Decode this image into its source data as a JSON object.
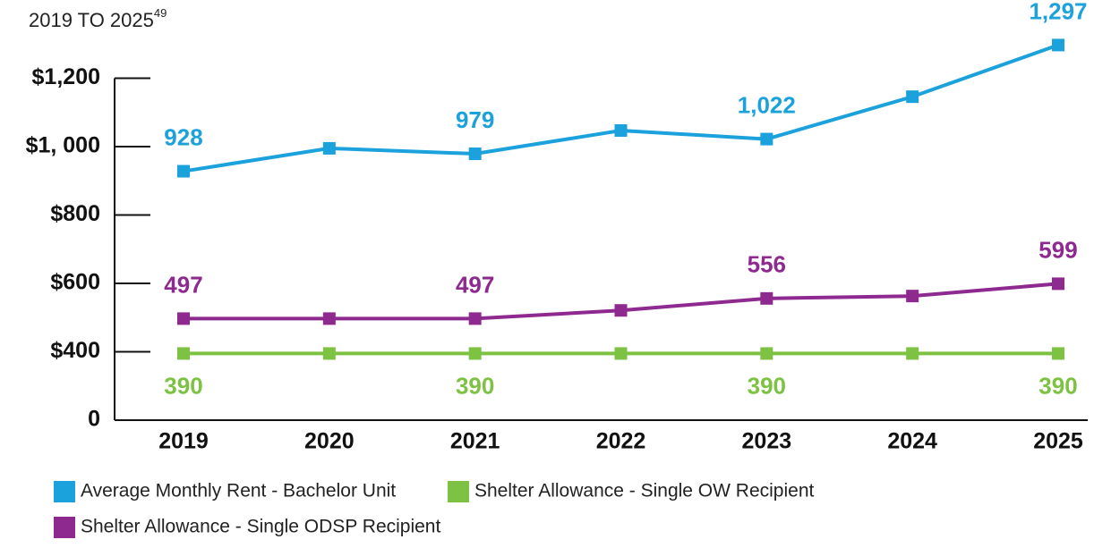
{
  "chart_data": {
    "type": "line",
    "title": "2019 TO 2025",
    "title_superscript": "49",
    "categories": [
      "2019",
      "2020",
      "2021",
      "2022",
      "2023",
      "2024",
      "2025"
    ],
    "series": [
      {
        "name": "Average Monthly Rent - Bachelor Unit",
        "color": "#1ba1dc",
        "values": [
          928,
          995,
          979,
          1047,
          1022,
          1146,
          1297
        ],
        "value_labels": [
          "928",
          null,
          "979",
          null,
          "1,022",
          null,
          "1,297"
        ]
      },
      {
        "name": "Shelter Allowance - Single OW Recipient",
        "color": "#7dc243",
        "values": [
          390,
          390,
          390,
          390,
          390,
          390,
          390
        ],
        "value_labels": [
          "390",
          null,
          "390",
          null,
          "390",
          null,
          "390"
        ]
      },
      {
        "name": "Shelter Allowance - Single ODSP Recipient",
        "color": "#8e2a8f",
        "values": [
          497,
          497,
          497,
          521,
          556,
          563,
          599
        ],
        "value_labels": [
          "497",
          null,
          "497",
          null,
          "556",
          null,
          "599"
        ]
      }
    ],
    "ylim": [
      0,
      1300
    ],
    "yticks": [
      0,
      {
        "value": 400,
        "label": "$400"
      },
      {
        "value": 600,
        "label": "$600"
      },
      {
        "value": 800,
        "label": "$800"
      },
      {
        "value": 1000,
        "label": "$1, 000"
      },
      {
        "value": 1200,
        "label": "$1,200"
      }
    ]
  }
}
